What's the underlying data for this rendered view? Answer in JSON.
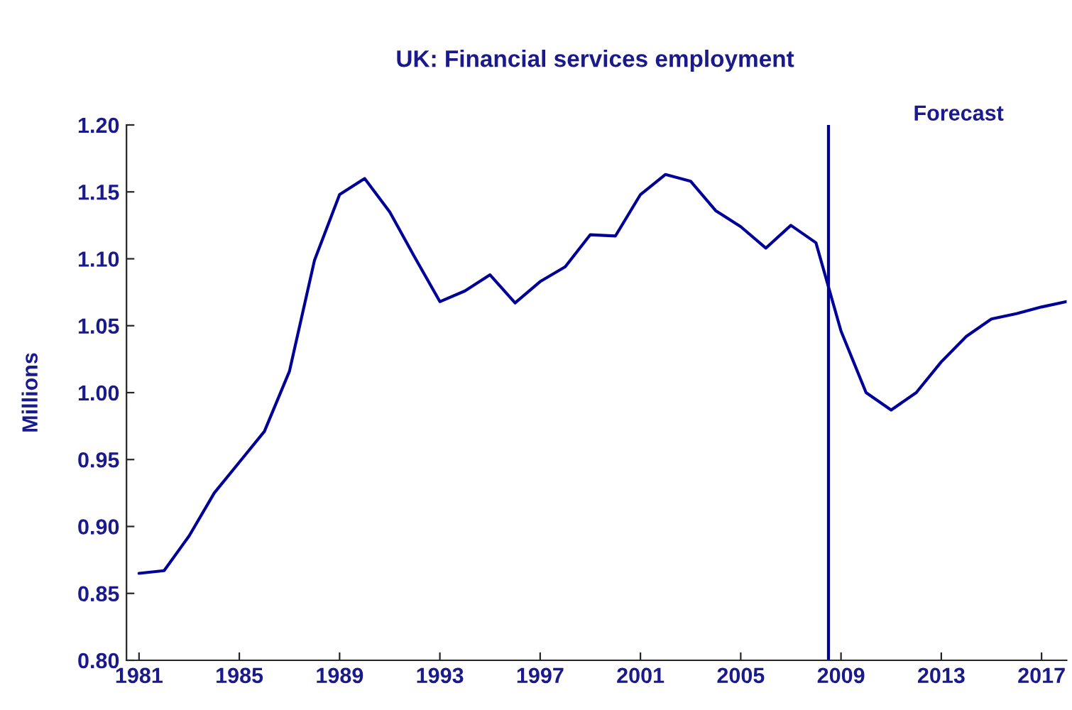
{
  "chart_data": {
    "type": "line",
    "title": "UK: Financial services employment",
    "ylabel": "Millions",
    "x": [
      1981,
      1982,
      1983,
      1984,
      1985,
      1986,
      1987,
      1988,
      1989,
      1990,
      1991,
      1992,
      1993,
      1994,
      1995,
      1996,
      1997,
      1998,
      1999,
      2000,
      2001,
      2002,
      2003,
      2004,
      2005,
      2006,
      2007,
      2008,
      2009,
      2010,
      2011,
      2012,
      2013,
      2014,
      2015,
      2016,
      2017,
      2018
    ],
    "series": [
      {
        "color": "#000099",
        "values": [
          0.865,
          0.867,
          0.893,
          0.925,
          0.948,
          0.971,
          1.016,
          1.099,
          1.148,
          1.16,
          1.135,
          1.101,
          1.068,
          1.076,
          1.088,
          1.067,
          1.083,
          1.094,
          1.118,
          1.117,
          1.148,
          1.163,
          1.158,
          1.136,
          1.124,
          1.108,
          1.125,
          1.112,
          1.046,
          1.0,
          0.987,
          1.0,
          1.023,
          1.042,
          1.055,
          1.059,
          1.064,
          1.068
        ]
      }
    ],
    "xlim": [
      1980.5,
      2018
    ],
    "xticks": [
      1981,
      1985,
      1989,
      1993,
      1997,
      2001,
      2005,
      2009,
      2013,
      2017
    ],
    "ylim": [
      0.8,
      1.2
    ],
    "yticks": [
      {
        "value": 0.8,
        "label": "0.80"
      },
      {
        "value": 0.85,
        "label": "0.85"
      },
      {
        "value": 0.9,
        "label": "0.90"
      },
      {
        "value": 0.95,
        "label": "0.95"
      },
      {
        "value": 1.0,
        "label": "1.00"
      },
      {
        "value": 1.05,
        "label": "1.05"
      },
      {
        "value": 1.1,
        "label": "1.10"
      },
      {
        "value": 1.15,
        "label": "1.15"
      },
      {
        "value": 1.2,
        "label": "1.20"
      }
    ],
    "ref_lines": [
      {
        "axis": "x",
        "value": 2008.5,
        "color": "#000099",
        "line_style": "solid"
      }
    ],
    "annotations": [
      "Forecast"
    ],
    "grid": false,
    "legend": false,
    "marker": "none",
    "line_style": "solid"
  }
}
